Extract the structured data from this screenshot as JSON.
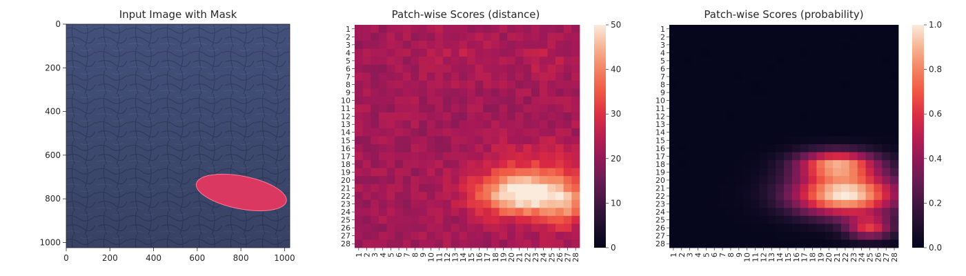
{
  "chart_data": [
    {
      "type": "image",
      "title": "Input Image with Mask",
      "xlim": [
        0,
        1024
      ],
      "ylim": [
        1024,
        0
      ],
      "xticks": [
        0,
        200,
        400,
        600,
        800,
        1000
      ],
      "yticks": [
        0,
        200,
        400,
        600,
        800,
        1000
      ],
      "image_description": "blue-grey textured leather with a pink elongated defect mask overlay",
      "mask": {
        "label": "defect",
        "color": "#e8375f",
        "center": [
          802,
          771
        ],
        "length": 420,
        "width": 150,
        "angle_deg": 11
      }
    },
    {
      "type": "heatmap",
      "title": "Patch-wise Scores (distance)",
      "grid": 28,
      "xticklabels": [
        "1",
        "2",
        "3",
        "4",
        "5",
        "6",
        "7",
        "8",
        "9",
        "10",
        "11",
        "12",
        "13",
        "14",
        "15",
        "16",
        "17",
        "18",
        "19",
        "20",
        "21",
        "22",
        "23",
        "24",
        "25",
        "26",
        "27",
        "28"
      ],
      "yticklabels": [
        "1",
        "2",
        "3",
        "4",
        "5",
        "6",
        "7",
        "8",
        "9",
        "10",
        "11",
        "12",
        "13",
        "14",
        "15",
        "16",
        "17",
        "18",
        "19",
        "20",
        "21",
        "22",
        "23",
        "24",
        "25",
        "26",
        "27",
        "28"
      ],
      "vmin": 0,
      "vmax": 50,
      "colorbar_ticks": [
        0,
        10,
        20,
        30,
        40,
        50
      ],
      "background": 22,
      "hotspots": [
        {
          "row": 21.8,
          "col": 21.5,
          "sx": 4.2,
          "sy": 1.9,
          "amp": 28
        },
        {
          "row": 23.5,
          "col": 26.5,
          "sx": 2.2,
          "sy": 2.0,
          "amp": 12
        },
        {
          "row": 18.5,
          "col": 24.0,
          "sx": 5.5,
          "sy": 2.5,
          "amp": 6
        },
        {
          "row": 4.0,
          "col": 13.0,
          "sx": 3.0,
          "sy": 2.0,
          "amp": 3
        },
        {
          "row": 4.5,
          "col": 24.0,
          "sx": 2.5,
          "sy": 2.0,
          "amp": 3
        }
      ]
    },
    {
      "type": "heatmap",
      "title": "Patch-wise Scores (probability)",
      "grid": 28,
      "xticklabels": [
        "1",
        "2",
        "3",
        "4",
        "5",
        "6",
        "7",
        "8",
        "9",
        "10",
        "11",
        "12",
        "13",
        "14",
        "15",
        "16",
        "17",
        "18",
        "19",
        "20",
        "21",
        "22",
        "23",
        "24",
        "25",
        "26",
        "27",
        "28"
      ],
      "yticklabels": [
        "1",
        "2",
        "3",
        "4",
        "5",
        "6",
        "7",
        "8",
        "9",
        "10",
        "11",
        "12",
        "13",
        "14",
        "15",
        "16",
        "17",
        "18",
        "19",
        "20",
        "21",
        "22",
        "23",
        "24",
        "25",
        "26",
        "27",
        "28"
      ],
      "vmin": 0,
      "vmax": 1,
      "colorbar_ticks": [
        0.0,
        0.2,
        0.4,
        0.6,
        0.8,
        1.0
      ],
      "colorbar_ticklabels": [
        "0.0",
        "0.2",
        "0.4",
        "0.6",
        "0.8",
        "1.0"
      ],
      "background": 0.01,
      "hotspots": [
        {
          "row": 21.8,
          "col": 22.0,
          "sx": 4.6,
          "sy": 1.9,
          "amp": 1.0
        },
        {
          "row": 18.0,
          "col": 21.0,
          "sx": 3.5,
          "sy": 1.2,
          "amp": 0.75
        },
        {
          "row": 26.0,
          "col": 25.0,
          "sx": 2.0,
          "sy": 1.0,
          "amp": 0.55
        }
      ]
    }
  ]
}
